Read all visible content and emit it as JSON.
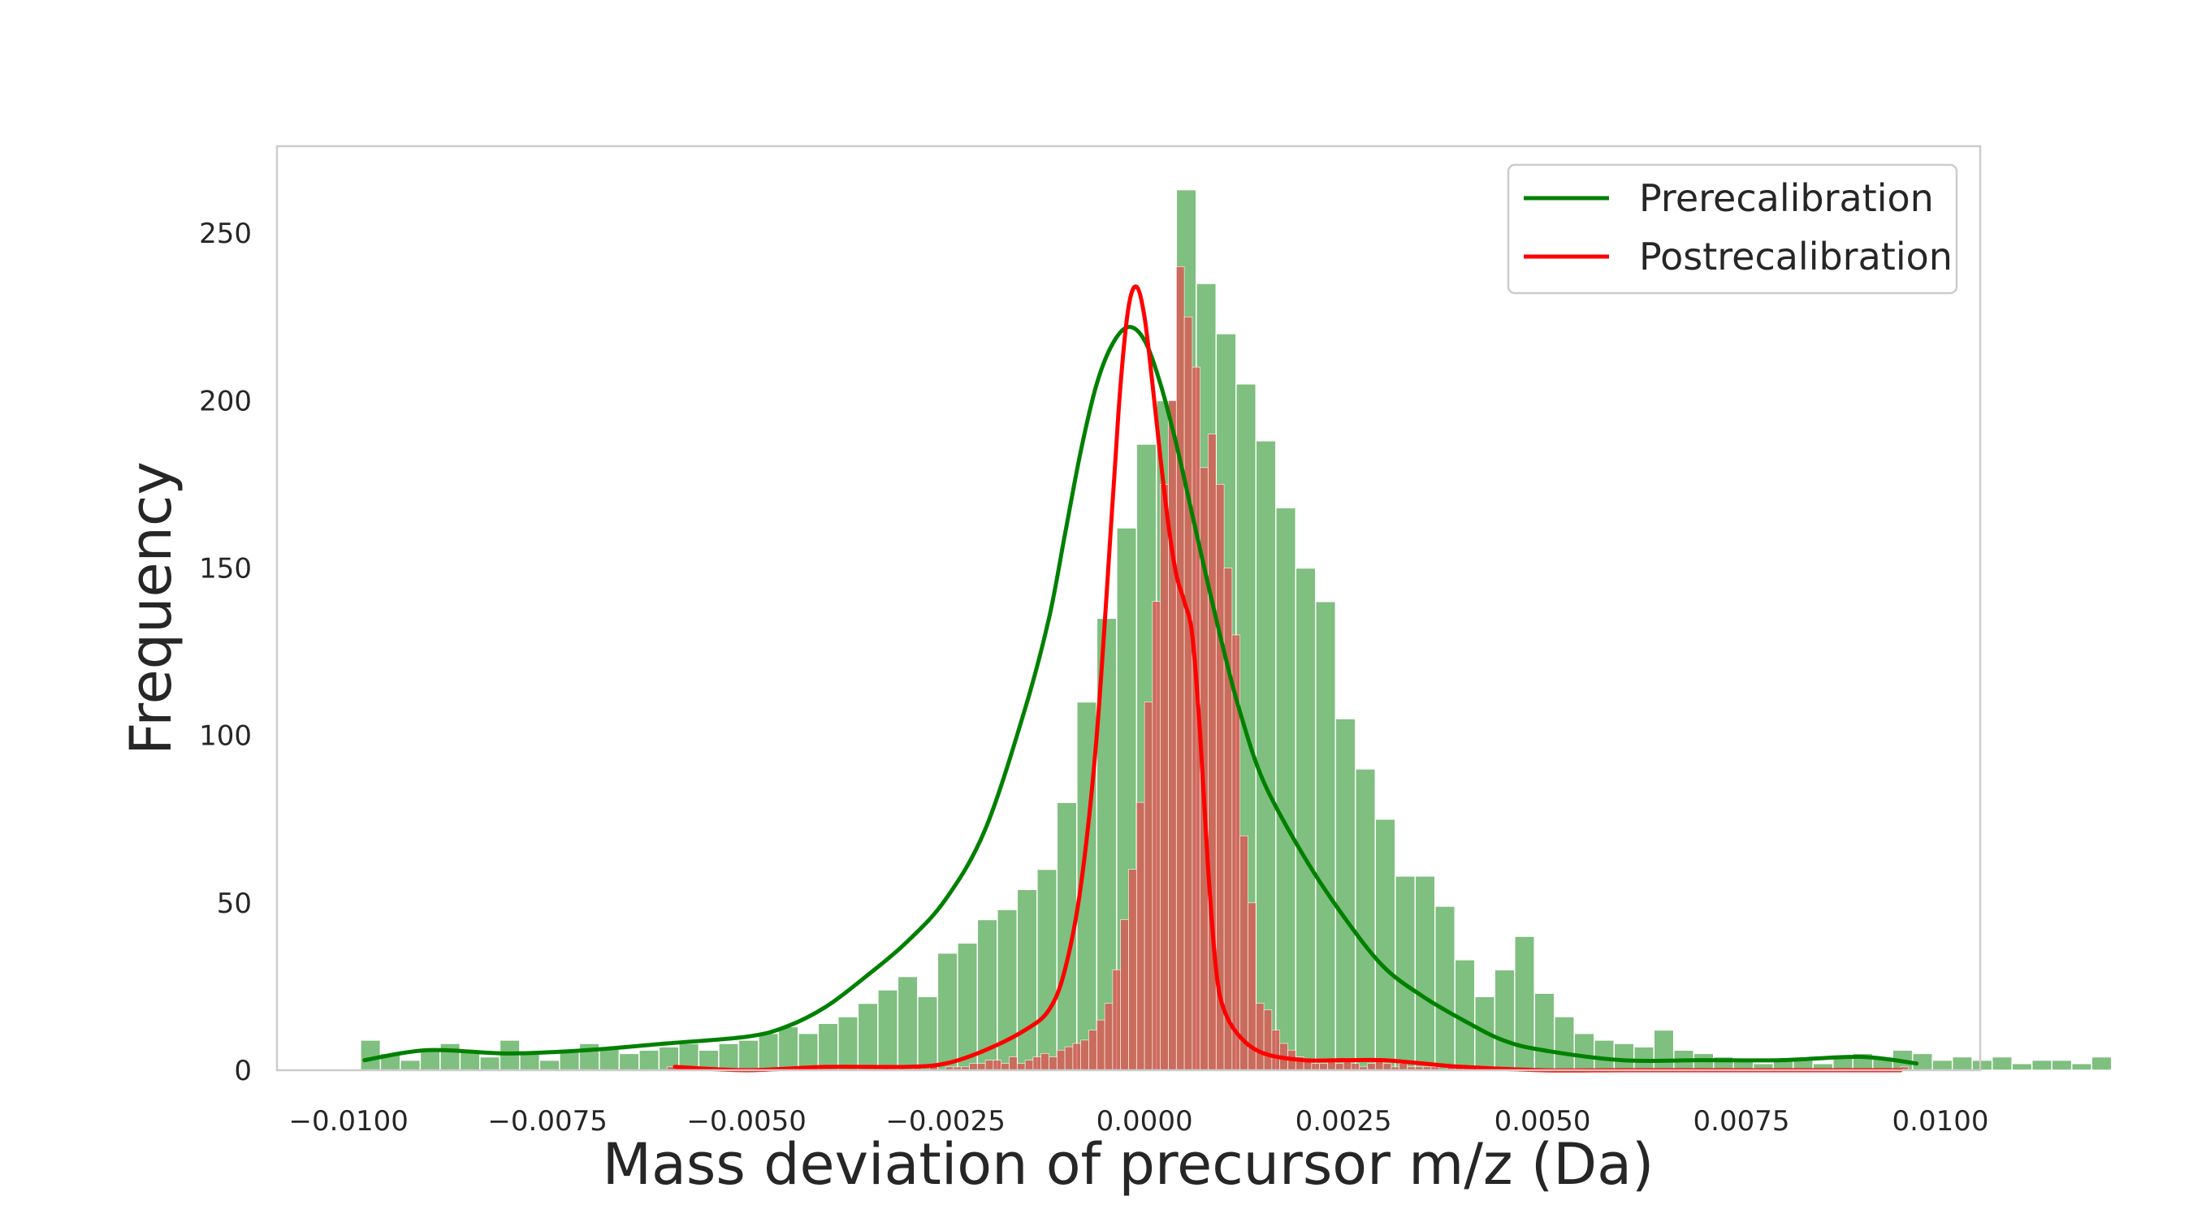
{
  "chart_data": {
    "type": "bar",
    "title": "",
    "xlabel": "Mass deviation of precursor m/z (Da)",
    "ylabel": "Frequency",
    "xlim": [
      -0.0109,
      0.0105
    ],
    "ylim": [
      0,
      276
    ],
    "x_ticks": [
      -0.01,
      -0.0075,
      -0.005,
      -0.0025,
      0.0,
      0.0025,
      0.005,
      0.0075,
      0.01
    ],
    "x_tick_labels": [
      "−0.0100",
      "−0.0075",
      "−0.0050",
      "−0.0025",
      "0.0000",
      "0.0025",
      "0.0050",
      "0.0075",
      "0.0100"
    ],
    "y_ticks": [
      0,
      50,
      100,
      150,
      200,
      250
    ],
    "y_tick_labels": [
      "0",
      "50",
      "100",
      "150",
      "200",
      "250"
    ],
    "grid": false,
    "legend_position": "top-right",
    "series": [
      {
        "name": "Prerecalibration",
        "color": "#008000",
        "bar_color": "#7fbf7f",
        "bin_start": -0.00985,
        "bin_width": 0.00025,
        "values": [
          9,
          5,
          3,
          6,
          8,
          6,
          4,
          9,
          5,
          3,
          6,
          8,
          7,
          5,
          6,
          7,
          8,
          6,
          8,
          9,
          11,
          13,
          11,
          14,
          16,
          20,
          24,
          28,
          22,
          35,
          38,
          45,
          48,
          54,
          60,
          80,
          110,
          135,
          162,
          187,
          200,
          263,
          235,
          220,
          205,
          188,
          168,
          150,
          140,
          105,
          90,
          75,
          58,
          58,
          49,
          33,
          22,
          30,
          40,
          23,
          16,
          11,
          9,
          8,
          7,
          12,
          6,
          5,
          4,
          3,
          2,
          3,
          3,
          2,
          4,
          5,
          4,
          6,
          5,
          3,
          4,
          3,
          4,
          2,
          3,
          3,
          2,
          4
        ],
        "kde_x": [
          -0.0098,
          -0.009,
          -0.008,
          -0.007,
          -0.006,
          -0.005,
          -0.0045,
          -0.004,
          -0.0035,
          -0.003,
          -0.0025,
          -0.002,
          -0.0015,
          -0.0012,
          -0.001,
          -0.0008,
          -0.0006,
          -0.0004,
          -0.0002,
          0.0,
          0.0002,
          0.0004,
          0.0006,
          0.0008,
          0.001,
          0.0012,
          0.0015,
          0.002,
          0.0025,
          0.003,
          0.0035,
          0.004,
          0.0045,
          0.005,
          0.006,
          0.007,
          0.008,
          0.009,
          0.0097
        ],
        "kde_y": [
          3,
          6,
          5,
          6,
          8,
          10,
          13,
          19,
          28,
          38,
          51,
          72,
          108,
          135,
          160,
          185,
          205,
          217,
          222,
          218,
          205,
          187,
          166,
          145,
          125,
          107,
          86,
          64,
          46,
          31,
          22,
          15,
          9,
          6,
          3,
          3,
          3,
          4,
          2
        ]
      },
      {
        "name": "Postrecalibration",
        "color": "#ff0000",
        "bar_color": "#e05050",
        "bin_start": -0.006,
        "bin_width": 0.0001,
        "values": [
          1,
          1,
          0,
          0,
          0,
          0,
          0,
          0,
          0,
          0,
          0,
          0,
          0,
          0,
          0,
          0,
          0,
          0,
          0,
          0,
          0,
          0,
          0,
          0,
          0,
          0,
          0,
          1,
          0,
          0,
          0,
          1,
          0,
          1,
          0,
          1,
          1,
          1,
          2,
          2,
          3,
          3,
          2,
          4,
          2,
          3,
          4,
          5,
          4,
          6,
          7,
          8,
          9,
          12,
          15,
          20,
          30,
          45,
          60,
          80,
          110,
          140,
          175,
          200,
          240,
          225,
          210,
          180,
          190,
          175,
          150,
          130,
          70,
          50,
          20,
          18,
          12,
          8,
          6,
          4,
          3,
          2,
          2,
          3,
          2,
          3,
          2,
          1,
          2,
          3,
          2,
          1,
          2,
          1,
          1,
          1,
          1,
          0,
          1,
          1,
          0,
          0,
          0,
          0,
          0,
          0,
          0,
          0,
          0,
          0,
          0,
          0,
          0,
          0,
          0,
          0,
          0,
          0,
          0,
          0,
          0,
          0,
          0,
          0,
          0,
          0,
          0,
          0,
          0,
          0,
          0,
          0,
          0,
          0,
          0,
          0,
          0,
          0,
          0,
          0,
          0,
          0,
          0,
          0,
          0,
          0,
          0,
          0,
          0,
          0,
          0,
          0,
          0,
          0,
          0,
          1
        ],
        "kde_x": [
          -0.0059,
          -0.005,
          -0.004,
          -0.003,
          -0.0025,
          -0.002,
          -0.0015,
          -0.0012,
          -0.001,
          -0.0008,
          -0.0006,
          -0.0004,
          -0.0003,
          -0.0002,
          -0.0001,
          0.0,
          0.0001,
          0.0002,
          0.0003,
          0.0004,
          0.0005,
          0.0006,
          0.0007,
          0.0008,
          0.0009,
          0.001,
          0.0012,
          0.0015,
          0.002,
          0.0025,
          0.003,
          0.0035,
          0.004,
          0.005,
          0.006,
          0.007,
          0.008,
          0.0095
        ],
        "kde_y": [
          1,
          0,
          1,
          1,
          2,
          6,
          12,
          18,
          30,
          55,
          100,
          170,
          205,
          228,
          234,
          225,
          205,
          183,
          163,
          148,
          140,
          130,
          100,
          60,
          30,
          18,
          10,
          5,
          3,
          3,
          3,
          2,
          1,
          0,
          0,
          0,
          0,
          0
        ]
      }
    ]
  }
}
